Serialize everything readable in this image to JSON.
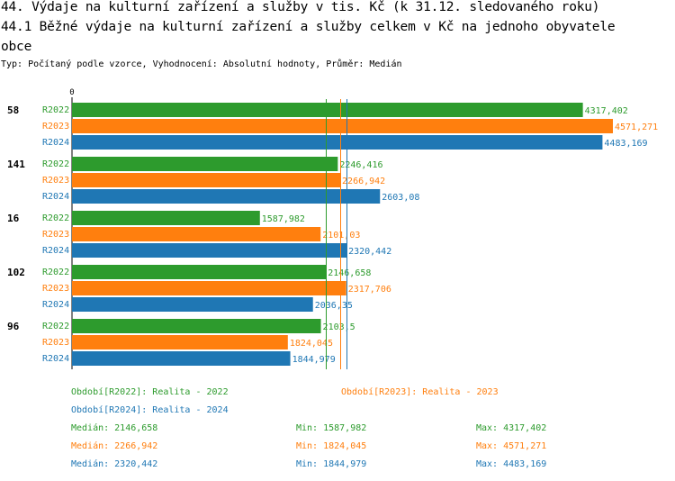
{
  "title_line1": "44. Výdaje na kulturní zařízení a služby v tis. Kč (k 31.12. sledovaného roku)",
  "title_line2": "44.1 Běžné výdaje na kulturní zařízení a služby celkem v Kč na jednoho obyvatele",
  "title_line3": "obce",
  "subtitle": "Typ: Počítaný podle vzorce, Vyhodnocení: Absolutní hodnoty, Průměr: Medián",
  "colors": {
    "R2022": "#2d9b2d",
    "R2023": "#ff7f0e",
    "R2024": "#1f77b4"
  },
  "chart_data": {
    "type": "bar",
    "orientation": "horizontal",
    "axis_zero_label": "0",
    "xlim": [
      0,
      4571.271
    ],
    "categories": [
      "58",
      "141",
      "16",
      "102",
      "96"
    ],
    "series": [
      {
        "name": "R2022",
        "values": [
          4317.402,
          2246.416,
          1587.982,
          2146.658,
          2103.5
        ],
        "labels": [
          "4317,402",
          "2246,416",
          "1587,982",
          "2146,658",
          "2103,5"
        ]
      },
      {
        "name": "R2023",
        "values": [
          4571.271,
          2266.942,
          2101.03,
          2317.706,
          1824.045
        ],
        "labels": [
          "4571,271",
          "2266,942",
          "2101,03",
          "2317,706",
          "1824,045"
        ]
      },
      {
        "name": "R2024",
        "values": [
          4483.169,
          2603.08,
          2320.442,
          2036.35,
          1844.979
        ],
        "labels": [
          "4483,169",
          "2603,08",
          "2320,442",
          "2036,35",
          "1844,979"
        ]
      }
    ],
    "medians": {
      "R2022": 2146.658,
      "R2023": 2266.942,
      "R2024": 2320.442
    }
  },
  "legend": {
    "series": [
      {
        "key": "R2022",
        "text": "Období[R2022]: Realita - 2022"
      },
      {
        "key": "R2023",
        "text": "Období[R2023]: Realita - 2023"
      },
      {
        "key": "R2024",
        "text": "Období[R2024]: Realita - 2024"
      }
    ],
    "stats": [
      {
        "key": "R2022",
        "median": "Medián: 2146,658",
        "min": "Min: 1587,982",
        "max": "Max: 4317,402"
      },
      {
        "key": "R2023",
        "median": "Medián: 2266,942",
        "min": "Min: 1824,045",
        "max": "Max: 4571,271"
      },
      {
        "key": "R2024",
        "median": "Medián: 2320,442",
        "min": "Min: 1844,979",
        "max": "Max: 4483,169"
      }
    ]
  }
}
